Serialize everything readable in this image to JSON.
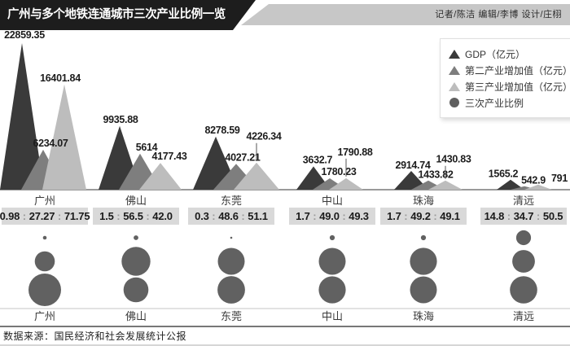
{
  "header": {
    "title": "广州与多个地铁连通城市三次产业比例一览",
    "credits": "记者/陈洁  编辑/李博  设计/庄栩"
  },
  "legend": {
    "items": [
      {
        "name": "gdp",
        "glyph": "triangle",
        "color": "#3a3a3a",
        "label": "GDP（亿元）"
      },
      {
        "name": "secondary",
        "glyph": "triangle",
        "color": "#7e7e7e",
        "label": "第二产业增加值（亿元）"
      },
      {
        "name": "tertiary",
        "glyph": "triangle",
        "color": "#bdbdbd",
        "label": "第三产业增加值（亿元）"
      },
      {
        "name": "ratio",
        "glyph": "circle",
        "color": "#5f5f5f",
        "label": "三次产业比例"
      }
    ]
  },
  "chart_data": {
    "type": "bar",
    "subtype": "triangle-peak pictorial bars + proportional bubbles",
    "categories": [
      "广州",
      "佛山",
      "东莞",
      "中山",
      "珠海",
      "清远"
    ],
    "series": [
      {
        "name": "GDP（亿元）",
        "values": [
          22859.35,
          9935.88,
          8278.59,
          3632.7,
          2914.74,
          1565.2
        ],
        "labels": [
          "22859.35",
          "9935.88",
          "8278.59",
          "3632.7",
          "2914.74",
          "1565.2"
        ]
      },
      {
        "name": "第二产业增加值（亿元）",
        "values": [
          6234.07,
          5614,
          4027.21,
          1780.23,
          1433.82,
          542.9
        ],
        "labels": [
          "6234.07",
          "5614",
          "4027.21",
          "1780.23",
          "1433.82",
          "542.9"
        ]
      },
      {
        "name": "第三产业增加值（亿元）",
        "values": [
          16401.84,
          4177.43,
          4226.34,
          1790.88,
          1430.83,
          791
        ],
        "labels": [
          "16401.84",
          "4177.43",
          "4226.34",
          "1790.88",
          "1430.83",
          "791"
        ]
      }
    ],
    "ratios": {
      "name": "三次产业比例（第一:第二:第三）",
      "values": [
        [
          "0.98",
          "27.27",
          "71.75"
        ],
        [
          "1.5",
          "56.5",
          "42.0"
        ],
        [
          "0.3",
          "48.6",
          "51.1"
        ],
        [
          "1.7",
          "49.0",
          "49.3"
        ],
        [
          "1.7",
          "49.2",
          "49.1"
        ],
        [
          "14.8",
          "34.7",
          "50.5"
        ]
      ]
    },
    "ylim": [
      0,
      22859.35
    ],
    "grid": false,
    "legend_position": "top-right",
    "colors": {
      "series": [
        "#3a3a3a",
        "#7e7e7e",
        "#bdbdbd"
      ],
      "bubble": "#616161",
      "ratio_bar_bg": "#d9d9d9",
      "baseline": "#9a9a9a"
    }
  },
  "footer": {
    "source": "数据来源：国民经济和社会发展统计公报"
  }
}
